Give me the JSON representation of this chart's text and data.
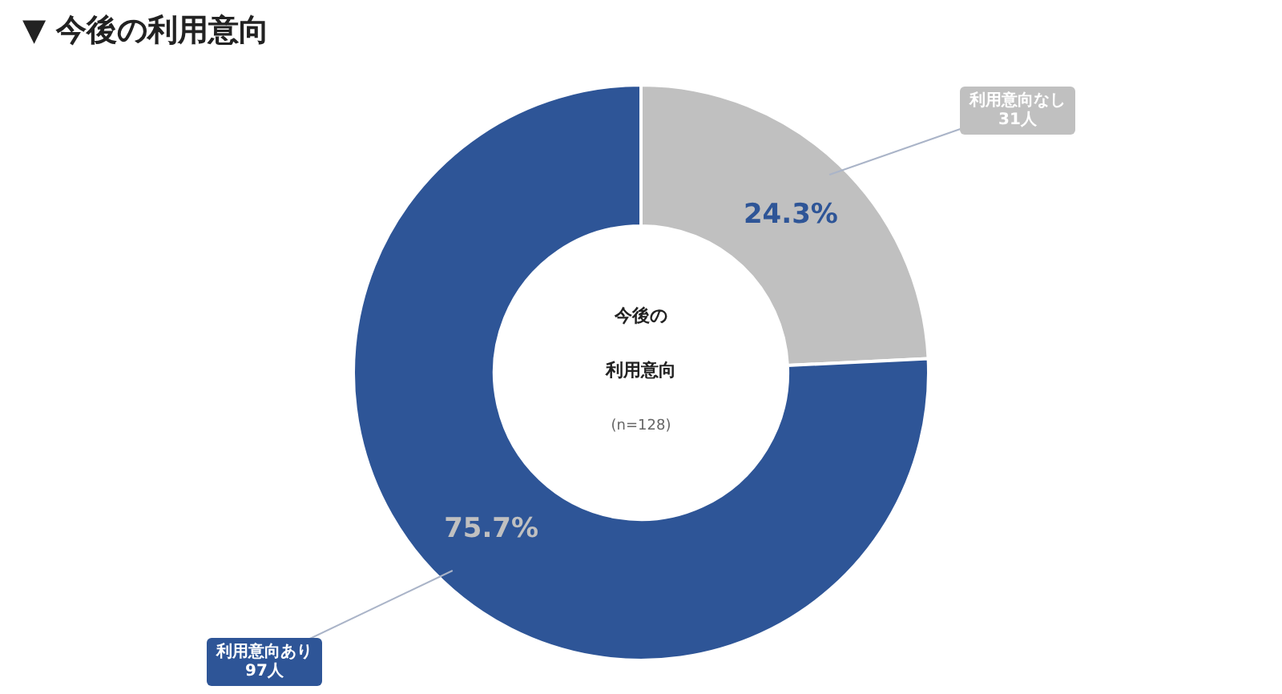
{
  "chart_data": {
    "type": "donut",
    "title": "▼ 今後の利用意向",
    "categories": [
      "利用意向なし",
      "利用意向あり"
    ],
    "values": [
      31,
      97
    ],
    "colors": [
      "#c0c0c0",
      "#2e5597"
    ],
    "value_labels": [
      "31人",
      "97人"
    ],
    "annotations": [
      "24.3%",
      "75.7%",
      "今後の",
      "利用意向",
      "(n=128)"
    ],
    "legend": false
  }
}
